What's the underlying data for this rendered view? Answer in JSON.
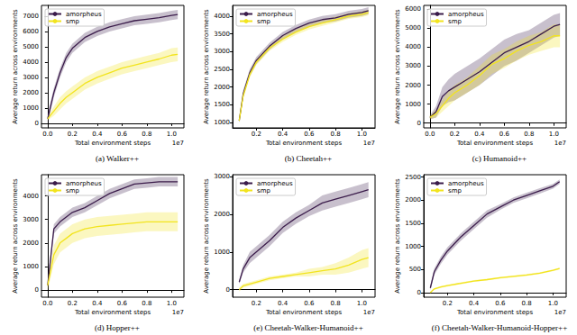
{
  "chart_data": [
    {
      "type": "line",
      "title": "(a) Walker++",
      "x_label": "Total environment steps",
      "y_label": "Average return across environments",
      "annotations": [
        "1e7"
      ],
      "x": [
        0.0,
        0.05,
        0.1,
        0.15,
        0.2,
        0.3,
        0.4,
        0.5,
        0.6,
        0.7,
        0.8,
        0.9,
        1.0,
        1.05
      ],
      "xlim": [
        -0.05,
        1.1
      ],
      "xticks": [
        {
          "value": 0,
          "label": "0.0"
        },
        0.2,
        0.4,
        0.6,
        0.8,
        {
          "value": 1,
          "label": "1.0"
        }
      ],
      "ylim": [
        -300,
        7700
      ],
      "yticks": [
        0,
        1000,
        2000,
        3000,
        4000,
        5000,
        6000,
        7000
      ],
      "grid": false,
      "legend": "upper left",
      "series": [
        {
          "name": "amorpheus",
          "color": "#3b1c4b",
          "values": [
            300,
            2000,
            3300,
            4300,
            4900,
            5600,
            6000,
            6300,
            6500,
            6700,
            6800,
            6900,
            7050,
            7100
          ],
          "lower": [
            0,
            1700,
            3000,
            4000,
            4600,
            5300,
            5700,
            6000,
            6200,
            6400,
            6500,
            6600,
            6750,
            6800
          ],
          "upper": [
            600,
            2300,
            3600,
            4600,
            5200,
            5900,
            6300,
            6600,
            6800,
            7000,
            7100,
            7200,
            7350,
            7400
          ]
        },
        {
          "name": "smp",
          "color": "#f2e41e",
          "values": [
            300,
            800,
            1300,
            1700,
            2000,
            2600,
            3000,
            3300,
            3600,
            3800,
            4000,
            4200,
            4450,
            4500
          ],
          "lower": [
            200,
            500,
            900,
            1300,
            1600,
            2200,
            2600,
            2900,
            3200,
            3400,
            3600,
            3800,
            4000,
            4050
          ],
          "upper": [
            400,
            1100,
            1700,
            2100,
            2400,
            3000,
            3400,
            3700,
            4000,
            4200,
            4400,
            4600,
            4900,
            4950
          ]
        }
      ]
    },
    {
      "type": "line",
      "title": "(b) Cheetah++",
      "x_label": "Total environment steps",
      "y_label": "Average return across environments",
      "annotations": [
        "1e7"
      ],
      "x": [
        0.07,
        0.1,
        0.15,
        0.2,
        0.3,
        0.4,
        0.5,
        0.6,
        0.7,
        0.8,
        0.9,
        1.0,
        1.05
      ],
      "xlim": [
        0.02,
        1.1
      ],
      "xticks": [
        0.2,
        0.4,
        0.6,
        0.8,
        {
          "value": 1,
          "label": "1.0"
        }
      ],
      "ylim": [
        850,
        4300
      ],
      "yticks": [
        1000,
        1500,
        2000,
        2500,
        3000,
        3500,
        4000
      ],
      "grid": false,
      "legend": "upper left",
      "series": [
        {
          "name": "amorpheus",
          "color": "#3b1c4b",
          "values": [
            1050,
            1800,
            2400,
            2750,
            3150,
            3450,
            3650,
            3800,
            3900,
            3950,
            4050,
            4100,
            4150
          ],
          "lower": [
            1000,
            1700,
            2300,
            2650,
            3050,
            3350,
            3550,
            3700,
            3800,
            3850,
            3950,
            4000,
            4050
          ],
          "upper": [
            1100,
            1900,
            2500,
            2850,
            3250,
            3550,
            3750,
            3900,
            4000,
            4050,
            4150,
            4200,
            4250
          ]
        },
        {
          "name": "smp",
          "color": "#f2e41e",
          "values": [
            1050,
            1750,
            2350,
            2700,
            3100,
            3350,
            3550,
            3700,
            3800,
            3900,
            4000,
            4050,
            4100
          ],
          "lower": [
            1000,
            1670,
            2270,
            2620,
            3020,
            3270,
            3470,
            3620,
            3720,
            3820,
            3920,
            3970,
            4020
          ],
          "upper": [
            1100,
            1830,
            2430,
            2780,
            3180,
            3430,
            3630,
            3780,
            3880,
            3980,
            4080,
            4130,
            4180
          ]
        }
      ]
    },
    {
      "type": "line",
      "title": "(c) Humanoid++",
      "x_label": "Total environment steps",
      "y_label": "Average return across environments",
      "annotations": [
        "1e7"
      ],
      "x": [
        0.0,
        0.05,
        0.1,
        0.15,
        0.2,
        0.3,
        0.4,
        0.5,
        0.6,
        0.7,
        0.8,
        0.9,
        1.0,
        1.05
      ],
      "xlim": [
        -0.05,
        1.1
      ],
      "xticks": [
        {
          "value": 0,
          "label": "0.0"
        },
        0.2,
        0.4,
        0.6,
        0.8,
        {
          "value": 1,
          "label": "1.0"
        }
      ],
      "ylim": [
        -250,
        6200
      ],
      "yticks": [
        0,
        1000,
        2000,
        3000,
        4000,
        5000,
        6000
      ],
      "grid": false,
      "legend": "upper left",
      "series": [
        {
          "name": "amorpheus",
          "color": "#3b1c4b",
          "values": [
            300,
            600,
            1400,
            1700,
            1900,
            2300,
            2700,
            3200,
            3700,
            4000,
            4300,
            4700,
            5100,
            5200
          ],
          "lower": [
            200,
            300,
            900,
            1100,
            1200,
            1600,
            2000,
            2500,
            3000,
            3300,
            3700,
            4100,
            4500,
            4600
          ],
          "upper": [
            400,
            900,
            1900,
            2300,
            2600,
            3000,
            3400,
            3900,
            4400,
            4700,
            4900,
            5300,
            5700,
            5800
          ]
        },
        {
          "name": "smp",
          "color": "#f2e41e",
          "values": [
            300,
            500,
            900,
            1300,
            1600,
            2000,
            2500,
            3100,
            3400,
            3800,
            4100,
            4300,
            4600,
            4600
          ],
          "lower": [
            200,
            300,
            600,
            900,
            1200,
            1600,
            2000,
            2600,
            2900,
            3300,
            3600,
            3800,
            4000,
            4000
          ],
          "upper": [
            400,
            700,
            1200,
            1700,
            2000,
            2400,
            3000,
            3600,
            3900,
            4300,
            4600,
            4800,
            5200,
            5200
          ]
        }
      ]
    },
    {
      "type": "line",
      "title": "(d) Hopper++",
      "x_label": "Total environment steps",
      "y_label": "Average return across environments",
      "annotations": [
        "1e7"
      ],
      "x": [
        0.0,
        0.05,
        0.1,
        0.15,
        0.2,
        0.3,
        0.4,
        0.5,
        0.6,
        0.7,
        0.8,
        0.9,
        1.0,
        1.05
      ],
      "xlim": [
        -0.05,
        1.1
      ],
      "xticks": [
        {
          "value": 0,
          "label": "0.0"
        },
        0.2,
        0.4,
        0.6,
        0.8,
        {
          "value": 1,
          "label": "1.0"
        }
      ],
      "ylim": [
        -300,
        4900
      ],
      "yticks": [
        0,
        1000,
        2000,
        3000,
        4000
      ],
      "grid": false,
      "legend": "upper left",
      "series": [
        {
          "name": "amorpheus",
          "color": "#3b1c4b",
          "values": [
            200,
            2600,
            2900,
            3100,
            3300,
            3500,
            3800,
            4100,
            4300,
            4500,
            4550,
            4600,
            4600,
            4600
          ],
          "lower": [
            100,
            2400,
            2700,
            2900,
            3100,
            3300,
            3600,
            3900,
            4100,
            4300,
            4350,
            4400,
            4400,
            4400
          ],
          "upper": [
            300,
            2800,
            3100,
            3300,
            3500,
            3700,
            4000,
            4300,
            4500,
            4700,
            4750,
            4800,
            4800,
            4800
          ]
        },
        {
          "name": "smp",
          "color": "#f2e41e",
          "values": [
            200,
            1500,
            2000,
            2200,
            2400,
            2600,
            2700,
            2750,
            2800,
            2850,
            2900,
            2900,
            2900,
            2900
          ],
          "lower": [
            0,
            1100,
            1600,
            1800,
            2000,
            2200,
            2300,
            2350,
            2400,
            2450,
            2500,
            2500,
            2500,
            2500
          ],
          "upper": [
            400,
            1900,
            2400,
            2600,
            2800,
            3000,
            3100,
            3150,
            3200,
            3250,
            3300,
            3300,
            3300,
            3300
          ]
        }
      ]
    },
    {
      "type": "line",
      "title": "(e) Cheetah-Walker-Humanoid++",
      "x_label": "Total environment steps",
      "y_label": "Average return across environments",
      "annotations": [
        "1e7"
      ],
      "x": [
        0.07,
        0.1,
        0.15,
        0.2,
        0.3,
        0.4,
        0.5,
        0.6,
        0.7,
        0.8,
        0.9,
        1.0,
        1.05
      ],
      "xlim": [
        0.02,
        1.1
      ],
      "xticks": [
        0.2,
        0.4,
        0.6,
        0.8,
        {
          "value": 1,
          "label": "1.0"
        }
      ],
      "ylim": [
        -200,
        3050
      ],
      "yticks": [
        0,
        1000,
        2000,
        3000
      ],
      "grid": false,
      "legend": "upper left",
      "series": [
        {
          "name": "amorpheus",
          "color": "#3b1c4b",
          "values": [
            200,
            550,
            850,
            1000,
            1300,
            1650,
            1900,
            2100,
            2300,
            2400,
            2500,
            2600,
            2650
          ],
          "lower": [
            150,
            450,
            700,
            850,
            1150,
            1500,
            1750,
            1950,
            2100,
            2200,
            2300,
            2400,
            2450
          ],
          "upper": [
            250,
            650,
            1000,
            1150,
            1450,
            1800,
            2050,
            2250,
            2500,
            2600,
            2700,
            2800,
            2850
          ]
        },
        {
          "name": "smp",
          "color": "#f2e41e",
          "values": [
            0,
            100,
            150,
            200,
            300,
            350,
            400,
            450,
            500,
            550,
            650,
            800,
            850
          ],
          "lower": [
            -50,
            50,
            100,
            150,
            250,
            300,
            350,
            350,
            400,
            400,
            450,
            550,
            600
          ],
          "upper": [
            50,
            150,
            200,
            250,
            350,
            400,
            450,
            550,
            600,
            700,
            850,
            1050,
            1100
          ]
        }
      ]
    },
    {
      "type": "line",
      "title": "(f) Cheetah-Walker-Humanoid-Hopper++",
      "x_label": "Total environment steps",
      "y_label": "Average return across environments",
      "annotations": [
        "1e7"
      ],
      "x": [
        0.07,
        0.1,
        0.15,
        0.2,
        0.3,
        0.4,
        0.5,
        0.6,
        0.7,
        0.8,
        0.9,
        1.0,
        1.05
      ],
      "xlim": [
        0.02,
        1.1
      ],
      "xticks": [
        0.2,
        0.4,
        0.6,
        0.8,
        {
          "value": 1,
          "label": "1.0"
        }
      ],
      "ylim": [
        -100,
        2550
      ],
      "yticks": [
        0,
        500,
        1000,
        1500,
        2000,
        2500
      ],
      "grid": false,
      "legend": "upper left",
      "series": [
        {
          "name": "amorpheus",
          "color": "#3b1c4b",
          "values": [
            100,
            450,
            700,
            900,
            1200,
            1450,
            1700,
            1850,
            2000,
            2100,
            2200,
            2300,
            2400
          ],
          "lower": [
            50,
            380,
            620,
            820,
            1120,
            1370,
            1620,
            1790,
            1940,
            2040,
            2140,
            2250,
            2350
          ],
          "upper": [
            150,
            520,
            780,
            980,
            1280,
            1530,
            1780,
            1910,
            2060,
            2160,
            2260,
            2350,
            2450
          ]
        },
        {
          "name": "smp",
          "color": "#f2e41e",
          "values": [
            0,
            80,
            120,
            150,
            200,
            250,
            280,
            320,
            350,
            380,
            420,
            480,
            520
          ],
          "lower": [
            -20,
            60,
            100,
            130,
            180,
            230,
            260,
            300,
            330,
            360,
            400,
            460,
            500
          ],
          "upper": [
            20,
            100,
            140,
            170,
            220,
            270,
            300,
            340,
            370,
            400,
            440,
            500,
            540
          ]
        }
      ]
    }
  ]
}
